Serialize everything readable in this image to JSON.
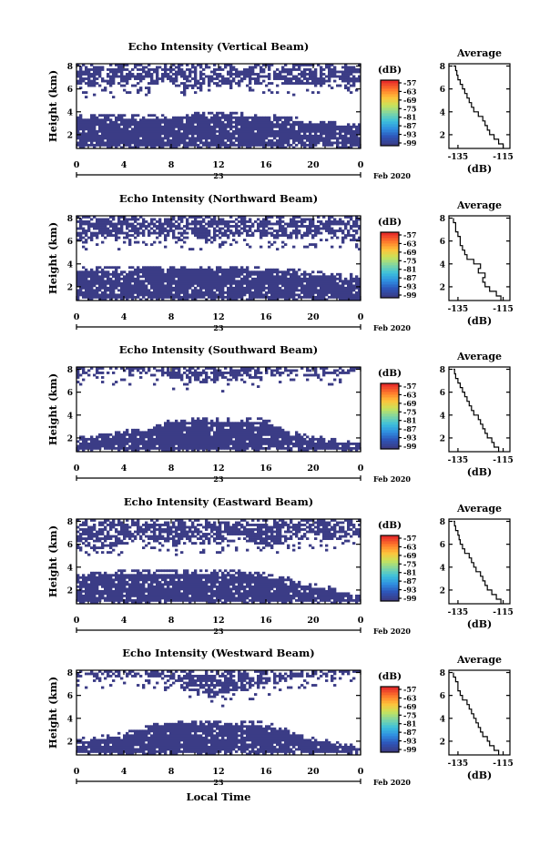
{
  "figure": {
    "time_label": "Local Time",
    "date_day": "23",
    "date_label": "Feb 2020",
    "colorbar_unit": "(dB)",
    "colorbar_ticks": [
      "-57",
      "-63",
      "-69",
      "-75",
      "-81",
      "-87",
      "-93",
      "-99"
    ],
    "colorbar_colors": [
      "#3b3c86",
      "#2e55b8",
      "#2f8ee0",
      "#3cc0dc",
      "#7fd6a4",
      "#c9e35a",
      "#ffc23a",
      "#ff7a2c",
      "#e8302a"
    ],
    "echo_color": "#3b3c86"
  },
  "chart_data": [
    {
      "type": "heatmap",
      "title": "Echo Intensity (Vertical Beam)",
      "ylabel": "Height (km)",
      "x_ticks": [
        "0",
        "4",
        "8",
        "12",
        "16",
        "20",
        "0"
      ],
      "xlim": [
        0,
        24
      ],
      "y_ticks": [
        "2",
        "4",
        "6",
        "8"
      ],
      "ylim": [
        0.8,
        8.2
      ],
      "layers": [
        {
          "name": "lower",
          "top": [
            3.8,
            3.8,
            3.8,
            3.8,
            3.8,
            3.9,
            3.9,
            3.9,
            3.8,
            3.6,
            3.3,
            3.1,
            3.0
          ],
          "bottom": [
            0.8,
            0.8,
            0.8,
            0.8,
            0.8,
            0.8,
            0.8,
            0.8,
            0.8,
            0.8,
            0.8,
            0.8,
            0.8
          ]
        },
        {
          "name": "upper",
          "top": [
            8.2,
            8.2,
            8.2,
            8.2,
            8.2,
            8.2,
            8.2,
            8.2,
            8.2,
            8.2,
            8.2,
            8.2,
            8.2
          ],
          "bottom": [
            6.3,
            6.0,
            6.2,
            6.4,
            6.6,
            6.0,
            6.3,
            6.2,
            6.5,
            6.4,
            6.1,
            6.3,
            6.2
          ]
        }
      ],
      "profile": {
        "title": "Average",
        "xlabel": "(dB)",
        "x_ticks": [
          "-135",
          "-115"
        ],
        "xlim": [
          -139,
          -112
        ],
        "y_ticks": [
          "2",
          "4",
          "6",
          "8"
        ],
        "ylim": [
          0.8,
          8.2
        ],
        "heights": [
          0.8,
          1.2,
          1.6,
          2.0,
          2.4,
          2.8,
          3.2,
          3.6,
          4.0,
          4.4,
          4.8,
          5.2,
          5.6,
          6.0,
          6.4,
          6.8,
          7.2,
          7.6,
          8.0
        ],
        "values": [
          -115,
          -117,
          -119,
          -121,
          -122,
          -123,
          -124,
          -126,
          -128,
          -129,
          -130,
          -131,
          -132,
          -133,
          -134,
          -135,
          -135.5,
          -136,
          -137
        ]
      }
    },
    {
      "type": "heatmap",
      "title": "Echo Intensity (Northward Beam)",
      "ylabel": "Height (km)",
      "x_ticks": [
        "0",
        "4",
        "8",
        "12",
        "16",
        "20",
        "0"
      ],
      "xlim": [
        0,
        24
      ],
      "y_ticks": [
        "2",
        "4",
        "6",
        "8"
      ],
      "ylim": [
        0.8,
        8.2
      ],
      "layers": [
        {
          "name": "lower",
          "top": [
            3.7,
            3.7,
            3.8,
            3.8,
            3.8,
            3.8,
            3.9,
            3.8,
            3.8,
            3.6,
            3.4,
            3.2,
            3.1
          ],
          "bottom": [
            0.8,
            0.8,
            0.8,
            0.8,
            0.8,
            0.8,
            0.8,
            0.8,
            0.8,
            0.8,
            0.8,
            0.8,
            0.8
          ]
        },
        {
          "name": "upper",
          "top": [
            8.2,
            8.2,
            8.2,
            8.2,
            8.2,
            8.2,
            8.2,
            8.2,
            8.2,
            8.2,
            8.2,
            8.2,
            8.2
          ],
          "bottom": [
            6.0,
            6.2,
            6.1,
            6.4,
            6.3,
            6.0,
            6.2,
            6.4,
            6.3,
            6.1,
            6.4,
            6.2,
            6.0
          ]
        }
      ],
      "profile": {
        "title": "Average",
        "xlabel": "(dB)",
        "x_ticks": [
          "-135",
          "-115"
        ],
        "xlim": [
          -139,
          -112
        ],
        "y_ticks": [
          "2",
          "4",
          "6",
          "8"
        ],
        "ylim": [
          0.8,
          8.2
        ],
        "heights": [
          0.8,
          1.2,
          1.6,
          2.0,
          2.4,
          2.8,
          3.2,
          3.6,
          4.0,
          4.4,
          4.8,
          5.2,
          5.6,
          6.0,
          6.4,
          6.8,
          7.2,
          7.6,
          8.0
        ],
        "values": [
          -116,
          -118,
          -121,
          -123,
          -124,
          -123,
          -126,
          -125,
          -128,
          -131,
          -132,
          -133,
          -134,
          -134,
          -135,
          -136,
          -136,
          -137,
          -137
        ]
      }
    },
    {
      "type": "heatmap",
      "title": "Echo Intensity (Southward Beam)",
      "ylabel": "Height (km)",
      "x_ticks": [
        "0",
        "4",
        "8",
        "12",
        "16",
        "20",
        "0"
      ],
      "xlim": [
        0,
        24
      ],
      "y_ticks": [
        "2",
        "4",
        "6",
        "8"
      ],
      "ylim": [
        0.8,
        8.2
      ],
      "layers": [
        {
          "name": "lower",
          "top": [
            2.2,
            2.4,
            2.7,
            3.0,
            3.6,
            3.8,
            3.8,
            3.8,
            3.7,
            2.6,
            2.3,
            2.0,
            1.6
          ],
          "bottom": [
            0.8,
            0.8,
            0.8,
            0.8,
            0.8,
            0.8,
            0.8,
            0.8,
            0.8,
            0.8,
            0.8,
            0.8,
            0.8
          ]
        },
        {
          "name": "upper",
          "top": [
            8.2,
            8.2,
            8.2,
            8.2,
            8.2,
            8.2,
            8.2,
            8.2,
            8.2,
            8.2,
            8.2,
            8.2,
            8.2
          ],
          "bottom": [
            7.4,
            7.6,
            7.5,
            7.7,
            7.2,
            6.8,
            6.9,
            7.1,
            7.3,
            7.5,
            7.4,
            7.6,
            7.8
          ]
        }
      ],
      "profile": {
        "title": "Average",
        "xlabel": "(dB)",
        "x_ticks": [
          "-135",
          "-115"
        ],
        "xlim": [
          -139,
          -112
        ],
        "y_ticks": [
          "2",
          "4",
          "6",
          "8"
        ],
        "ylim": [
          0.8,
          8.2
        ],
        "heights": [
          0.8,
          1.2,
          1.6,
          2.0,
          2.4,
          2.8,
          3.2,
          3.6,
          4.0,
          4.4,
          4.8,
          5.2,
          5.6,
          6.0,
          6.4,
          6.8,
          7.2,
          7.6,
          8.0
        ],
        "values": [
          -117,
          -119,
          -120,
          -122,
          -123,
          -124,
          -125,
          -126,
          -128,
          -129,
          -130,
          -131,
          -132,
          -133,
          -134,
          -135,
          -136,
          -136.5,
          -137
        ]
      }
    },
    {
      "type": "heatmap",
      "title": "Echo Intensity (Eastward Beam)",
      "ylabel": "Height (km)",
      "x_ticks": [
        "0",
        "4",
        "8",
        "12",
        "16",
        "20",
        "0"
      ],
      "xlim": [
        0,
        24
      ],
      "y_ticks": [
        "2",
        "4",
        "6",
        "8"
      ],
      "ylim": [
        0.8,
        8.2
      ],
      "layers": [
        {
          "name": "lower",
          "top": [
            3.4,
            3.6,
            3.8,
            3.8,
            3.8,
            3.8,
            3.8,
            3.7,
            3.5,
            3.1,
            2.6,
            2.2,
            1.6
          ],
          "bottom": [
            0.8,
            0.8,
            0.8,
            0.8,
            0.8,
            0.8,
            0.8,
            0.8,
            0.8,
            0.8,
            0.8,
            0.8,
            0.8
          ]
        },
        {
          "name": "upper",
          "top": [
            8.2,
            8.2,
            8.2,
            8.2,
            8.2,
            8.2,
            8.2,
            8.2,
            8.2,
            8.2,
            8.2,
            8.2,
            8.2
          ],
          "bottom": [
            5.2,
            5.8,
            6.0,
            6.3,
            5.9,
            6.1,
            6.0,
            6.4,
            5.8,
            6.2,
            6.5,
            6.3,
            6.8
          ]
        }
      ],
      "profile": {
        "title": "Average",
        "xlabel": "(dB)",
        "x_ticks": [
          "-135",
          "-115"
        ],
        "xlim": [
          -139,
          -112
        ],
        "y_ticks": [
          "2",
          "4",
          "6",
          "8"
        ],
        "ylim": [
          0.8,
          8.2
        ],
        "heights": [
          0.8,
          1.2,
          1.6,
          2.0,
          2.4,
          2.8,
          3.2,
          3.6,
          4.0,
          4.4,
          4.8,
          5.2,
          5.6,
          6.0,
          6.4,
          6.8,
          7.2,
          7.6,
          8.0
        ],
        "values": [
          -116,
          -118,
          -120,
          -122,
          -123,
          -124,
          -125,
          -127,
          -128,
          -129,
          -130,
          -132,
          -133,
          -134,
          -134.5,
          -135,
          -136,
          -136.5,
          -137
        ]
      }
    },
    {
      "type": "heatmap",
      "title": "Echo Intensity (Westward Beam)",
      "ylabel": "Height (km)",
      "x_ticks": [
        "0",
        "4",
        "8",
        "12",
        "16",
        "20",
        "0"
      ],
      "xlim": [
        0,
        24
      ],
      "y_ticks": [
        "2",
        "4",
        "6",
        "8"
      ],
      "ylim": [
        0.8,
        8.2
      ],
      "layers": [
        {
          "name": "lower",
          "top": [
            2.3,
            2.5,
            2.8,
            3.4,
            3.8,
            3.9,
            3.8,
            3.8,
            3.7,
            3.0,
            2.4,
            2.0,
            1.6
          ],
          "bottom": [
            0.8,
            0.8,
            0.8,
            0.8,
            0.8,
            0.8,
            0.8,
            0.8,
            0.8,
            0.8,
            0.8,
            0.8,
            0.8
          ]
        },
        {
          "name": "upper",
          "top": [
            8.2,
            8.2,
            8.2,
            8.2,
            8.2,
            8.2,
            8.2,
            8.2,
            8.2,
            8.2,
            8.2,
            8.2,
            8.2
          ],
          "bottom": [
            7.6,
            7.4,
            7.7,
            7.5,
            7.2,
            6.0,
            5.8,
            6.2,
            6.9,
            7.3,
            7.6,
            7.8,
            7.9
          ]
        }
      ],
      "profile": {
        "title": "Average",
        "xlabel": "(dB)",
        "x_ticks": [
          "-135",
          "-115"
        ],
        "xlim": [
          -139,
          -112
        ],
        "y_ticks": [
          "2",
          "4",
          "6",
          "8"
        ],
        "ylim": [
          0.8,
          8.2
        ],
        "heights": [
          0.8,
          1.2,
          1.6,
          2.0,
          2.4,
          2.8,
          3.2,
          3.6,
          4.0,
          4.4,
          4.8,
          5.2,
          5.6,
          6.0,
          6.4,
          6.8,
          7.2,
          7.6,
          8.0
        ],
        "values": [
          -117,
          -119,
          -121,
          -122,
          -124,
          -125,
          -126,
          -127,
          -128,
          -129,
          -130,
          -131,
          -133,
          -134,
          -135,
          -135,
          -136,
          -137,
          -137
        ]
      }
    }
  ]
}
